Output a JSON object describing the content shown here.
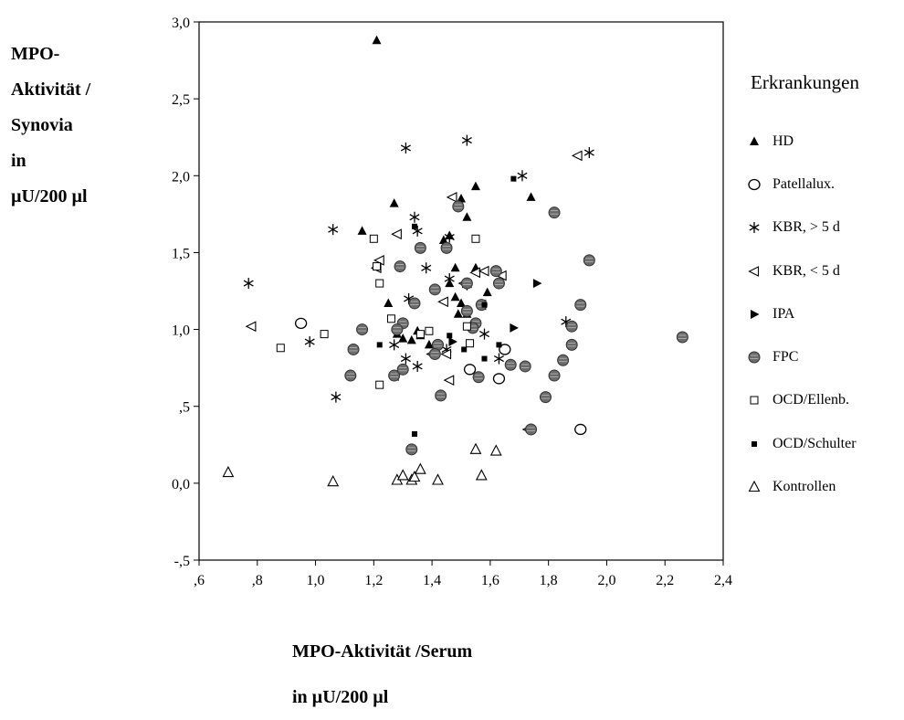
{
  "chart_data": {
    "type": "scatter",
    "xlabel_lines": [
      "MPO-Aktivität /Serum",
      "in µU/200 µl"
    ],
    "ylabel_lines": [
      "MPO-",
      "Aktivität /",
      "Synovia",
      "in",
      "µU/200 µl"
    ],
    "xlim": [
      0.6,
      2.4
    ],
    "ylim": [
      -0.5,
      3.0
    ],
    "x_ticks": [
      0.6,
      0.8,
      1.0,
      1.2,
      1.4,
      1.6,
      1.8,
      2.0,
      2.2,
      2.4
    ],
    "x_tick_labels": [
      ",6",
      ",8",
      "1,0",
      "1,2",
      "1,4",
      "1,6",
      "1,8",
      "2,0",
      "2,2",
      "2,4"
    ],
    "y_ticks": [
      -0.5,
      0.0,
      0.5,
      1.0,
      1.5,
      2.0,
      2.5,
      3.0
    ],
    "y_tick_labels": [
      "-,5",
      "0,0",
      ",5",
      "1,0",
      "1,5",
      "2,0",
      "2,5",
      "3,0"
    ],
    "grid": false,
    "legend_title": "Erkrankungen",
    "legend_position": "right",
    "series": [
      {
        "name": "HD",
        "marker": "triangle-up-filled",
        "points": [
          [
            1.21,
            2.88
          ],
          [
            1.27,
            1.82
          ],
          [
            1.16,
            1.64
          ],
          [
            1.55,
            1.93
          ],
          [
            1.74,
            1.86
          ],
          [
            1.5,
            1.85
          ],
          [
            1.52,
            1.73
          ],
          [
            1.46,
            1.61
          ],
          [
            1.44,
            1.58
          ],
          [
            1.48,
            1.4
          ],
          [
            1.55,
            1.4
          ],
          [
            1.46,
            1.3
          ],
          [
            1.59,
            1.24
          ],
          [
            1.25,
            1.17
          ],
          [
            1.48,
            1.21
          ],
          [
            1.5,
            1.17
          ],
          [
            1.52,
            1.1
          ],
          [
            1.35,
            0.99
          ],
          [
            1.3,
            0.94
          ],
          [
            1.36,
            0.96
          ],
          [
            1.49,
            1.1
          ],
          [
            1.28,
            0.97
          ],
          [
            1.33,
            0.93
          ],
          [
            1.39,
            0.9
          ]
        ]
      },
      {
        "name": "Patellalux.",
        "marker": "circle-open",
        "points": [
          [
            0.95,
            1.04
          ],
          [
            1.53,
            0.74
          ],
          [
            1.63,
            0.68
          ],
          [
            1.65,
            0.87
          ],
          [
            1.91,
            0.35
          ]
        ]
      },
      {
        "name": "KBR, > 5 d",
        "marker": "asterisk",
        "points": [
          [
            0.77,
            1.3
          ],
          [
            1.06,
            1.65
          ],
          [
            1.31,
            2.18
          ],
          [
            1.52,
            2.23
          ],
          [
            1.94,
            2.15
          ],
          [
            1.71,
            2.0
          ],
          [
            1.34,
            1.73
          ],
          [
            1.35,
            1.64
          ],
          [
            1.46,
            1.6
          ],
          [
            1.38,
            1.4
          ],
          [
            1.46,
            1.33
          ],
          [
            1.52,
            1.29
          ],
          [
            1.32,
            1.2
          ],
          [
            1.27,
            0.9
          ],
          [
            1.31,
            0.81
          ],
          [
            1.35,
            0.76
          ],
          [
            1.45,
            0.87
          ],
          [
            1.58,
            0.97
          ],
          [
            1.63,
            0.81
          ],
          [
            1.86,
            1.05
          ],
          [
            0.98,
            0.92
          ],
          [
            1.07,
            0.56
          ]
        ]
      },
      {
        "name": "KBR, < 5 d",
        "marker": "triangle-left-open",
        "points": [
          [
            0.78,
            1.02
          ],
          [
            1.22,
            1.45
          ],
          [
            1.21,
            1.4
          ],
          [
            1.28,
            1.62
          ],
          [
            1.47,
            1.86
          ],
          [
            1.51,
            1.3
          ],
          [
            1.55,
            1.37
          ],
          [
            1.58,
            1.38
          ],
          [
            1.64,
            1.35
          ],
          [
            1.57,
            1.16
          ],
          [
            1.44,
            1.18
          ],
          [
            1.4,
            0.84
          ],
          [
            1.45,
            0.84
          ],
          [
            1.46,
            0.67
          ],
          [
            1.73,
            0.35
          ],
          [
            1.9,
            2.13
          ],
          [
            1.27,
            0.7
          ]
        ]
      },
      {
        "name": "IPA",
        "marker": "triangle-right-filled",
        "points": [
          [
            1.76,
            1.3
          ],
          [
            1.68,
            1.01
          ],
          [
            1.47,
            0.92
          ]
        ]
      },
      {
        "name": "FPC",
        "marker": "circle-hatched",
        "points": [
          [
            2.26,
            0.95
          ],
          [
            1.82,
            1.76
          ],
          [
            1.94,
            1.45
          ],
          [
            1.91,
            1.16
          ],
          [
            1.88,
            1.02
          ],
          [
            1.88,
            0.9
          ],
          [
            1.85,
            0.8
          ],
          [
            1.82,
            0.7
          ],
          [
            1.79,
            0.56
          ],
          [
            1.72,
            0.76
          ],
          [
            1.67,
            0.77
          ],
          [
            1.62,
            1.38
          ],
          [
            1.63,
            1.3
          ],
          [
            1.57,
            1.16
          ],
          [
            1.55,
            1.04
          ],
          [
            1.54,
            1.01
          ],
          [
            1.52,
            1.3
          ],
          [
            1.52,
            1.12
          ],
          [
            1.49,
            1.8
          ],
          [
            1.45,
            1.53
          ],
          [
            1.41,
            1.26
          ],
          [
            1.36,
            1.53
          ],
          [
            1.34,
            1.17
          ],
          [
            1.29,
            1.41
          ],
          [
            1.3,
            1.04
          ],
          [
            1.28,
            1.0
          ],
          [
            1.27,
            0.7
          ],
          [
            1.3,
            0.74
          ],
          [
            1.42,
            0.9
          ],
          [
            1.43,
            0.57
          ],
          [
            1.16,
            1.0
          ],
          [
            1.13,
            0.87
          ],
          [
            1.12,
            0.7
          ],
          [
            1.33,
            0.22
          ],
          [
            1.74,
            0.35
          ],
          [
            1.41,
            0.84
          ],
          [
            1.56,
            0.69
          ]
        ]
      },
      {
        "name": "OCD/Ellenb.",
        "marker": "square-open",
        "points": [
          [
            1.2,
            1.59
          ],
          [
            1.55,
            1.59
          ],
          [
            1.22,
            1.3
          ],
          [
            1.21,
            1.41
          ],
          [
            1.26,
            1.07
          ],
          [
            1.39,
            0.99
          ],
          [
            1.36,
            0.97
          ],
          [
            1.03,
            0.97
          ],
          [
            0.88,
            0.88
          ],
          [
            1.22,
            0.64
          ],
          [
            1.53,
            0.91
          ],
          [
            1.52,
            1.02
          ]
        ]
      },
      {
        "name": "OCD/Schulter",
        "marker": "square-filled",
        "points": [
          [
            1.68,
            1.98
          ],
          [
            1.34,
            1.67
          ],
          [
            1.58,
            1.16
          ],
          [
            1.22,
            0.9
          ],
          [
            1.46,
            0.96
          ],
          [
            1.51,
            0.87
          ],
          [
            1.58,
            0.81
          ],
          [
            1.63,
            0.9
          ],
          [
            1.34,
            0.32
          ]
        ]
      },
      {
        "name": "Kontrollen",
        "marker": "triangle-up-open",
        "points": [
          [
            0.7,
            0.07
          ],
          [
            1.06,
            0.01
          ],
          [
            1.28,
            0.02
          ],
          [
            1.3,
            0.05
          ],
          [
            1.33,
            0.02
          ],
          [
            1.34,
            0.04
          ],
          [
            1.36,
            0.09
          ],
          [
            1.42,
            0.02
          ],
          [
            1.55,
            0.22
          ],
          [
            1.57,
            0.05
          ],
          [
            1.62,
            0.21
          ]
        ]
      }
    ]
  }
}
